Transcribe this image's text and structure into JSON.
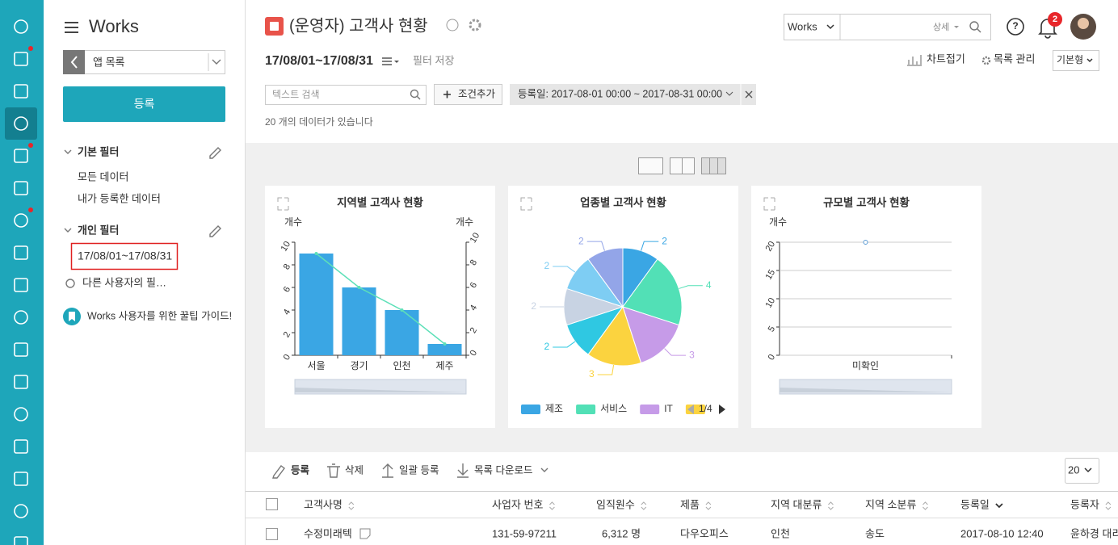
{
  "nav": {
    "title": "Works",
    "app_list": "앱 목록",
    "register": "등록",
    "basic_filter": {
      "title": "기본 필터",
      "items": [
        "모든 데이터",
        "내가 등록한 데이터"
      ]
    },
    "personal_filter": {
      "title": "개인 필터",
      "items": [
        "17/08/01~17/08/31"
      ]
    },
    "other_filters": "다른 사용자의 필…",
    "guide": "Works 사용자를 위한 꿀팁 가이드!"
  },
  "header": {
    "title": "(운영자) 고객사 현황",
    "search_scope": "Works",
    "search_detail": "상세",
    "notifications": 2,
    "date_range": "17/08/01~17/08/31",
    "save_filter": "필터 저장",
    "fold_chart": "차트접기",
    "list_manage": "목록 관리",
    "view_type": "기본형",
    "text_search": "텍스트 검색",
    "add_condition": "조건추가",
    "condition": "등록일: 2017-08-01 00:00 ~ 2017-08-31 00:00",
    "count_text": "20 개의 데이터가 있습니다"
  },
  "chart_data": [
    {
      "type": "bar",
      "title": "지역별 고객사 현황",
      "y_label": "개수",
      "y2_label": "개수",
      "categories": [
        "서울",
        "경기",
        "인천",
        "제주"
      ],
      "series": [
        {
          "values": [
            9,
            6,
            4,
            1
          ],
          "color": "#3aa6e4"
        },
        {
          "type": "line",
          "axis": "y2",
          "values": [
            9,
            6,
            4,
            1
          ],
          "color": "#5de0b8"
        }
      ],
      "ylim": [
        0,
        10
      ],
      "yticks": [
        0,
        2,
        4,
        6,
        8,
        10
      ],
      "y2lim": [
        0,
        10
      ],
      "y2ticks": [
        0,
        2,
        4,
        6,
        8,
        10
      ],
      "grid": false
    },
    {
      "type": "pie",
      "title": "업종별 고객사 현황",
      "categories": [
        "제조",
        "서비스",
        "IT",
        null,
        null,
        null,
        null,
        null
      ],
      "values": [
        2,
        4,
        3,
        3,
        2,
        2,
        2,
        2
      ],
      "colors": [
        "#3aa6e4",
        "#52e0b6",
        "#c69be8",
        "#fbd33f",
        "#2fc8e2",
        "#c8d3e3",
        "#7ecdf3",
        "#93a5e8"
      ],
      "legend_page": "1/4"
    },
    {
      "type": "line",
      "title": "규모별 고객사 현황",
      "y_label": "개수",
      "categories": [
        "미확인"
      ],
      "values": [
        20
      ],
      "color": "#5b9bd5",
      "ylim": [
        0,
        20
      ],
      "yticks": [
        0,
        5,
        10,
        15,
        20
      ],
      "grid": true
    }
  ],
  "table": {
    "toolbar": [
      "등록",
      "삭제",
      "일괄 등록",
      "목록 다운로드"
    ],
    "page_size": "20",
    "columns": [
      "고객사명",
      "사업자 번호",
      "임직원수",
      "제품",
      "지역 대분류",
      "지역 소분류",
      "등록일",
      "등록자"
    ],
    "rows": [
      [
        "수정미래텍",
        "131-59-97211",
        "6,312 명",
        "다우오피스",
        "인천",
        "송도",
        "2017-08-10 12:40",
        "윤하경 대리"
      ]
    ]
  }
}
